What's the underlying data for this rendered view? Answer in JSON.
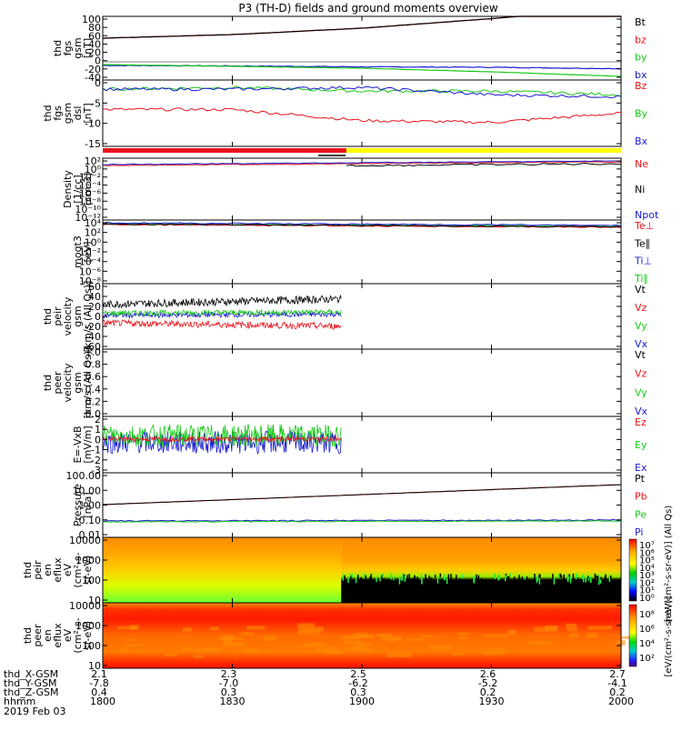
{
  "title": "P3 (TH-D) fields and ground moments overview",
  "footer": {
    "row_labels": [
      "thd_X-GSM",
      "thd_Y-GSM",
      "thd_Z-GSM",
      "hhmm",
      "2019 Feb 03"
    ],
    "columns": [
      {
        "x": "2.1",
        "y": "-7.8",
        "z": "0.4",
        "hhmm": "1800"
      },
      {
        "x": "2.3",
        "y": "-7.0",
        "z": "0.3",
        "hhmm": "1830"
      },
      {
        "x": "2.5",
        "y": "-6.2",
        "z": "0.3",
        "hhmm": "1900"
      },
      {
        "x": "2.6",
        "y": "-5.2",
        "z": "0.2",
        "hhmm": "1930"
      },
      {
        "x": "2.7",
        "y": "-4.1",
        "z": "0.2",
        "hhmm": "2000"
      }
    ]
  },
  "colors": {
    "black": "#000000",
    "red": "#e8141b",
    "green": "#16c816",
    "blue": "#1a1ad0",
    "yellow": "#ffff00",
    "frame": "#000000"
  },
  "chart_data": [
    {
      "type": "line",
      "panel": "fgs_gsm_1",
      "ylabel": [
        "thd",
        "fgs",
        "gsm",
        "[nT]"
      ],
      "ylim": [
        -40,
        100
      ],
      "yticks": [
        "100",
        "80",
        "60",
        "40",
        "20",
        "0",
        "-20",
        "-40"
      ],
      "x": [
        "1800",
        "1830",
        "1900",
        "1930",
        "2000"
      ],
      "series": [
        {
          "name": "Bt",
          "color": "black",
          "values": [
            52,
            60,
            74,
            95,
            120
          ]
        },
        {
          "name": "bz",
          "color": "red",
          "values": [
            52,
            60,
            74,
            95,
            120
          ]
        },
        {
          "name": "by",
          "color": "green",
          "values": [
            -6,
            -10,
            -14,
            -22,
            -32
          ]
        },
        {
          "name": "bx",
          "color": "blue",
          "values": [
            -8,
            -9,
            -11,
            -12,
            -15
          ]
        }
      ]
    },
    {
      "type": "line",
      "panel": "fgs_gsm_2",
      "ylabel": [
        "thd",
        "fgs",
        "gsm",
        "dsl",
        "[nT]"
      ],
      "ylim": [
        -17,
        1
      ],
      "yticks": [
        "0",
        "-5",
        "-10",
        "-15"
      ],
      "x": [
        "1800",
        "1830",
        "1900",
        "1930",
        "2000"
      ],
      "series": [
        {
          "name": "Bz",
          "color": "red",
          "values": [
            -7,
            -7,
            -10,
            -10.5,
            -8
          ]
        },
        {
          "name": "By",
          "color": "green",
          "values": [
            -1.5,
            -1,
            -2,
            -2,
            -3
          ]
        },
        {
          "name": "Bx",
          "color": "blue",
          "values": [
            -1.5,
            -1.5,
            -1,
            -3,
            -3.5
          ]
        }
      ]
    },
    {
      "type": "line",
      "panel": "density",
      "ylabel": [
        "Density",
        "[1/cc]",
        "[cm-3]"
      ],
      "yticks": [
        "10²",
        "10⁰",
        "10⁻²",
        "10⁻⁴",
        "10⁻⁶",
        "10⁻⁸",
        "10⁻¹⁰",
        "10⁻¹²"
      ],
      "series": [
        {
          "name": "Ne",
          "color": "red"
        },
        {
          "name": "Ni",
          "color": "black"
        },
        {
          "name": "Npot",
          "color": "blue"
        }
      ]
    },
    {
      "type": "line",
      "panel": "temperature",
      "ylabel": [
        "moqt3",
        "[eV]"
      ],
      "yticks": [
        "10⁴",
        "10²",
        "10⁰",
        "10⁻²",
        "10⁻⁴",
        "10⁻⁶",
        "10⁻⁸"
      ],
      "series": [
        {
          "name": "Te⊥",
          "color": "red"
        },
        {
          "name": "Te∥",
          "color": "black"
        },
        {
          "name": "Ti⊥",
          "color": "blue"
        },
        {
          "name": "Ti∥",
          "color": "green"
        }
      ]
    },
    {
      "type": "line",
      "panel": "peir_velocity",
      "ylabel": [
        "thd",
        "peir",
        "velocity",
        "gsm",
        "[km/s (All Qs)]"
      ],
      "ylim": [
        -60,
        60
      ],
      "yticks": [
        "60",
        "40",
        "20",
        "0",
        "-20",
        "-40",
        "-60"
      ],
      "series": [
        {
          "name": "Vt",
          "color": "black"
        },
        {
          "name": "Vz",
          "color": "red"
        },
        {
          "name": "Vy",
          "color": "green"
        },
        {
          "name": "Vx",
          "color": "blue"
        }
      ]
    },
    {
      "type": "line",
      "panel": "peer_velocity",
      "ylabel": [
        "thd",
        "peer",
        "velocity",
        "gsm",
        "[km/s (All Qs)]"
      ],
      "yticks": [
        "1.0",
        "0.8",
        "0.6",
        "0.4",
        "0.2",
        "0.0"
      ],
      "series": [
        {
          "name": "Vt",
          "color": "black"
        },
        {
          "name": "Vz",
          "color": "red"
        },
        {
          "name": "Vy",
          "color": "green"
        },
        {
          "name": "Vx",
          "color": "blue"
        }
      ]
    },
    {
      "type": "line",
      "panel": "efield",
      "ylabel": [
        "E=-VxB",
        "[mV/m]"
      ],
      "ylim": [
        -3,
        2
      ],
      "yticks": [
        "2",
        "1",
        "0",
        "-1",
        "-2",
        "-3"
      ],
      "series": [
        {
          "name": "Ez",
          "color": "red"
        },
        {
          "name": "Ey",
          "color": "green"
        },
        {
          "name": "Ex",
          "color": "blue"
        }
      ]
    },
    {
      "type": "line",
      "panel": "pressure",
      "ylabel": [
        "Pressure",
        "[nPa]"
      ],
      "yticks": [
        "100.00",
        "10.00",
        "1.00",
        "0.10",
        "0.01"
      ],
      "series": [
        {
          "name": "Pt",
          "color": "black"
        },
        {
          "name": "Pb",
          "color": "red"
        },
        {
          "name": "Pe",
          "color": "green"
        },
        {
          "name": "Pi",
          "color": "blue"
        }
      ]
    },
    {
      "type": "heatmap",
      "panel": "peir_spectrogram",
      "ylabel": [
        "thd",
        "peir",
        "en",
        "eflux",
        "eV",
        "(cm²-s-",
        "sr-eV)"
      ],
      "yticks": [
        "10000",
        "1000",
        "100",
        "10"
      ],
      "colorbar_label": "[eV/(cm²-s-sr-eV)] (All Qs)",
      "colorbar_ticks": [
        "10⁷",
        "10⁶",
        "10⁵",
        "10⁴",
        "10³",
        "10²",
        "10¹",
        "10⁰"
      ]
    },
    {
      "type": "heatmap",
      "panel": "peer_spectrogram",
      "ylabel": [
        "thd",
        "peer",
        "en",
        "eflux",
        "eV",
        "(cm²-s-",
        "sr-eV)"
      ],
      "yticks": [
        "10000",
        "1000",
        "100",
        "10"
      ],
      "colorbar_label": "[eV/(cm²-s-sr-eV)]",
      "colorbar_ticks": [
        "10⁸",
        "10⁶",
        "10⁴",
        "10²"
      ]
    }
  ]
}
